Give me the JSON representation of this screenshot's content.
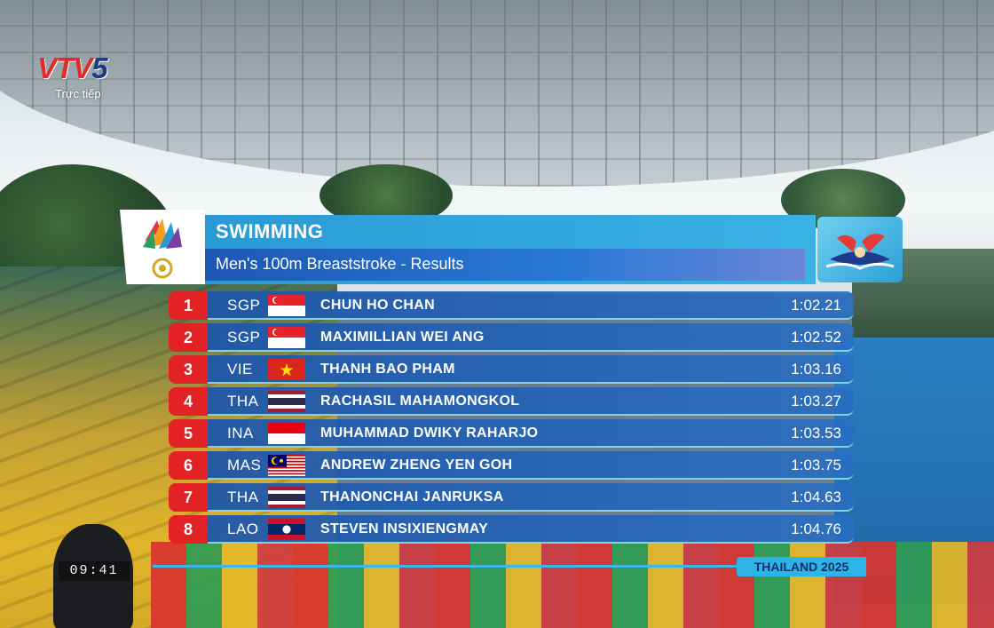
{
  "broadcast": {
    "channel_logo": "VTV5",
    "live_label": "Trực tiếp",
    "clock": "09:41"
  },
  "header": {
    "event_logo": "games-emblem-icon",
    "mascot": "swimming-mascot-icon",
    "sport": "SWIMMING",
    "event": "Men's 100m Breaststroke - Results"
  },
  "results": [
    {
      "rank": "1",
      "code": "SGP",
      "flag": "singapore-flag-icon",
      "name": "CHUN HO CHAN",
      "time": "1:02.21"
    },
    {
      "rank": "2",
      "code": "SGP",
      "flag": "singapore-flag-icon",
      "name": "MAXIMILLIAN WEI ANG",
      "time": "1:02.52"
    },
    {
      "rank": "3",
      "code": "VIE",
      "flag": "vietnam-flag-icon",
      "name": "THANH BAO PHAM",
      "time": "1:03.16"
    },
    {
      "rank": "4",
      "code": "THA",
      "flag": "thailand-flag-icon",
      "name": "RACHASIL MAHAMONGKOL",
      "time": "1:03.27"
    },
    {
      "rank": "5",
      "code": "INA",
      "flag": "indonesia-flag-icon",
      "name": "MUHAMMAD DWIKY RAHARJO",
      "time": "1:03.53"
    },
    {
      "rank": "6",
      "code": "MAS",
      "flag": "malaysia-flag-icon",
      "name": "ANDREW ZHENG YEN GOH",
      "time": "1:03.75"
    },
    {
      "rank": "7",
      "code": "THA",
      "flag": "thailand-flag-icon",
      "name": "THANONCHAI JANRUKSA",
      "time": "1:04.63"
    },
    {
      "rank": "8",
      "code": "LAO",
      "flag": "laos-flag-icon",
      "name": "STEVEN INSIXIENGMAY",
      "time": "1:04.76"
    }
  ],
  "footer": {
    "host": "THAILAND 2025"
  },
  "colors": {
    "rank_red": "#e32225",
    "header_blue": "#2a9ad6",
    "bar_blue": "#1e56aa",
    "accent_cyan": "#39b7e6"
  }
}
